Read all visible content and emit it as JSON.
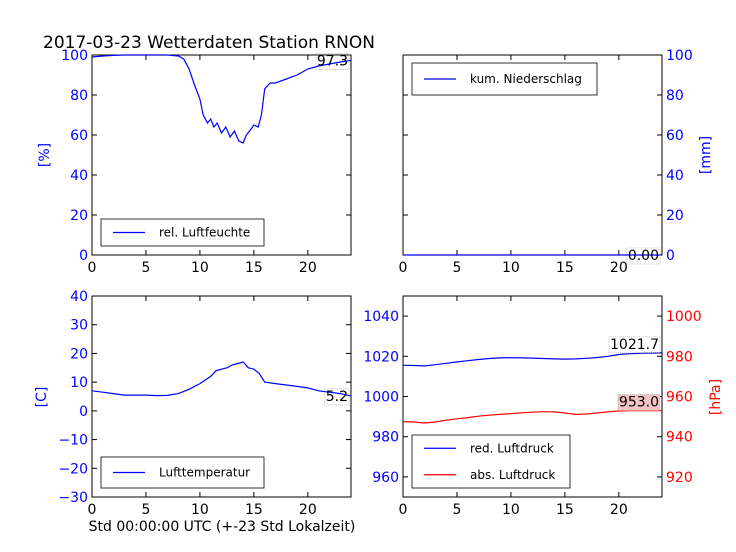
{
  "title": "2017-03-23 Wetterdaten Station RNON",
  "xlabel": "Std 00:00:00 UTC (+-23 Std Lokalzeit)",
  "colors": {
    "blue": "#0000ff",
    "red": "#ff0000",
    "ann_bg_red": "#f3c4c4"
  },
  "chart_data": [
    {
      "type": "line",
      "ylabel": "[%]",
      "xlim": [
        0,
        24
      ],
      "ylim": [
        0,
        100
      ],
      "xticks": [
        0,
        5,
        10,
        15,
        20
      ],
      "yticks": [
        0,
        20,
        40,
        60,
        80,
        100
      ],
      "legend_position": "bottom-left",
      "last_value": "97.3",
      "series": [
        {
          "name": "rel. Luftfeuchte",
          "color": "blue",
          "x": [
            0,
            1,
            2,
            3,
            4,
            5,
            6,
            7,
            8,
            8.5,
            9,
            9.5,
            10,
            10.3,
            10.7,
            11,
            11.3,
            11.6,
            12,
            12.4,
            12.8,
            13.2,
            13.6,
            14,
            14.3,
            14.6,
            15,
            15.4,
            15.7,
            16,
            16.5,
            17,
            18,
            19,
            20,
            21,
            22,
            23,
            24
          ],
          "y": [
            99,
            99.5,
            99.8,
            100,
            100,
            100,
            100,
            100,
            99.5,
            98,
            93,
            85,
            78,
            70,
            66,
            68,
            64,
            66,
            61,
            64,
            59,
            62,
            57,
            56,
            60,
            62,
            65,
            64,
            70,
            83,
            86,
            86,
            88,
            90,
            93,
            94.5,
            95.5,
            96.5,
            97.3
          ]
        }
      ]
    },
    {
      "type": "line",
      "ylabel": "[mm]",
      "xlim": [
        0,
        24
      ],
      "ylim": [
        0,
        100
      ],
      "xticks": [
        0,
        5,
        10,
        15,
        20
      ],
      "yticks": [
        0,
        20,
        40,
        60,
        80,
        100
      ],
      "legend_position": "top-left",
      "last_value": "0.00",
      "series": [
        {
          "name": "kum. Niederschlag",
          "color": "blue",
          "x": [
            0,
            24
          ],
          "y": [
            0,
            0
          ]
        }
      ]
    },
    {
      "type": "line",
      "ylabel": "[C]",
      "xlim": [
        0,
        24
      ],
      "ylim": [
        -30,
        40
      ],
      "xticks": [
        0,
        5,
        10,
        15,
        20
      ],
      "yticks": [
        -30,
        -20,
        -10,
        0,
        10,
        20,
        30,
        40
      ],
      "legend_position": "bottom-left",
      "last_value": "5.2",
      "series": [
        {
          "name": "Lufttemperatur",
          "color": "blue",
          "x": [
            0,
            1,
            2,
            3,
            4,
            5,
            6,
            7,
            8,
            9,
            10,
            11,
            11.5,
            12,
            12.5,
            13,
            13.5,
            14,
            14.5,
            15,
            15.5,
            16,
            17,
            18,
            19,
            20,
            21,
            22,
            23,
            24
          ],
          "y": [
            7,
            6.5,
            6,
            5.5,
            5.5,
            5.5,
            5.3,
            5.4,
            6,
            7.5,
            9.5,
            12,
            14,
            14.5,
            15,
            16,
            16.5,
            17,
            15,
            14.5,
            13,
            10,
            9.5,
            9,
            8.5,
            8,
            7,
            6.5,
            6,
            5.2
          ]
        }
      ]
    },
    {
      "type": "line",
      "ylabel": "[hPa]",
      "xlim": [
        0,
        24
      ],
      "ylim": [
        950,
        1050
      ],
      "ylim_right": [
        910,
        1010
      ],
      "xticks": [
        0,
        5,
        10,
        15,
        20
      ],
      "yticks": [
        960,
        980,
        1000,
        1020,
        1040
      ],
      "yticks_right": [
        920,
        940,
        960,
        980,
        1000
      ],
      "legend_position": "bottom-left",
      "last_values": [
        "1021.7",
        "953.0"
      ],
      "series": [
        {
          "name": "red. Luftdruck",
          "color": "blue",
          "axis": "left",
          "x": [
            0,
            1,
            2,
            3,
            4,
            5,
            6,
            7,
            8,
            9,
            10,
            11,
            12,
            13,
            14,
            15,
            16,
            17,
            18,
            19,
            20,
            21,
            22,
            23,
            24
          ],
          "y": [
            1015.5,
            1015.4,
            1015.2,
            1015.8,
            1016.5,
            1017.2,
            1017.8,
            1018.4,
            1018.9,
            1019.2,
            1019.3,
            1019.2,
            1019.1,
            1018.9,
            1018.7,
            1018.6,
            1018.7,
            1019,
            1019.4,
            1020,
            1020.9,
            1021.3,
            1021.5,
            1021.6,
            1021.7
          ]
        },
        {
          "name": "abs. Luftdruck",
          "color": "red",
          "axis": "right",
          "x": [
            0,
            1,
            2,
            3,
            4,
            5,
            6,
            7,
            8,
            9,
            10,
            11,
            12,
            13,
            14,
            15,
            16,
            17,
            18,
            19,
            20,
            21,
            22,
            23,
            24
          ],
          "y": [
            947.5,
            947.3,
            946.8,
            947.3,
            948.2,
            948.9,
            949.5,
            950.2,
            950.7,
            951.1,
            951.5,
            951.9,
            952.2,
            952.4,
            952.4,
            951.8,
            951.1,
            951.3,
            951.8,
            952.4,
            952.8,
            953,
            953,
            953,
            953
          ]
        }
      ]
    }
  ]
}
